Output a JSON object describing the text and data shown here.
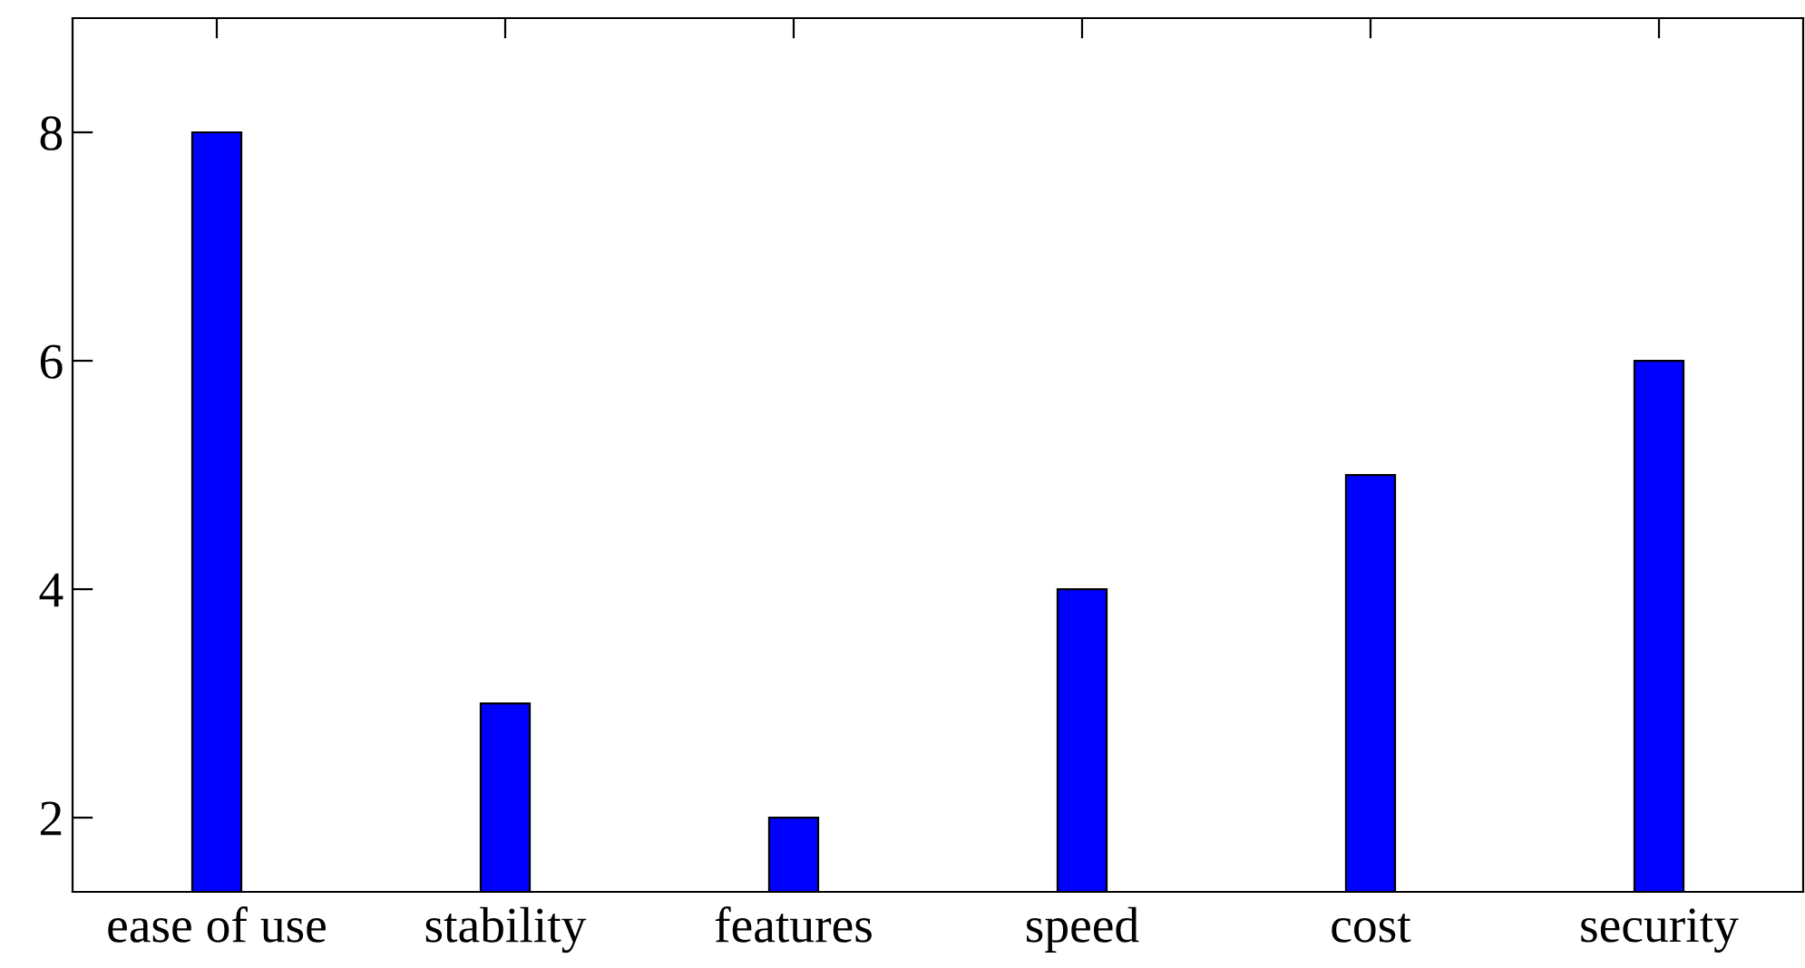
{
  "chart_data": {
    "type": "bar",
    "categories": [
      "ease of use",
      "stability",
      "features",
      "speed",
      "cost",
      "security"
    ],
    "values": [
      8,
      3,
      2,
      4,
      5,
      6
    ],
    "color": "#0000ff",
    "ylim": [
      1.35,
      9
    ],
    "yticks": [
      2,
      4,
      6,
      8
    ],
    "grid": false,
    "legend": false
  }
}
